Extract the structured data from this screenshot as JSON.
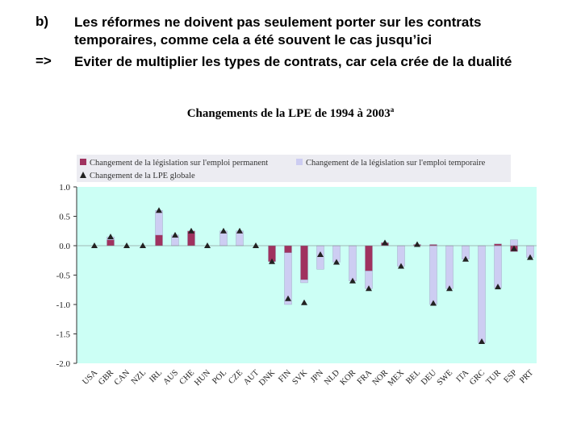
{
  "slide": {
    "marker_1": "b)",
    "marker_2": "=>",
    "line_1": "Les réformes ne doivent pas seulement porter sur les contrats",
    "line_2": "temporaires, comme cela a été souvent le cas jusqu’ici",
    "line_3": "Eviter de multiplier les types de contrats, car cela crée de la dualité"
  },
  "chart_data": {
    "type": "bar",
    "title": "Changements de la LPE de 1994 à 2003",
    "title_note": "a",
    "categories": [
      "USA",
      "GBR",
      "CAN",
      "NZL",
      "IRL",
      "AUS",
      "CHE",
      "HUN",
      "POL",
      "CZE",
      "AUT",
      "DNK",
      "FIN",
      "SVK",
      "JPN",
      "NLD",
      "KOR",
      "FRA",
      "NOR",
      "MEX",
      "BEL",
      "DEU",
      "SWE",
      "ITA",
      "GRC",
      "TUR",
      "ESP",
      "PRT"
    ],
    "series": [
      {
        "name": "Changement de la législation sur l'emploi permanent",
        "kind": "bar",
        "color": "#a0325f",
        "values": [
          0,
          0.1,
          0,
          0,
          0.18,
          0,
          0.25,
          0,
          0,
          0,
          0,
          -0.27,
          -0.12,
          -0.58,
          0,
          0,
          0,
          -0.43,
          0.05,
          0,
          0.02,
          0.02,
          0,
          0,
          0,
          0.03,
          -0.1,
          0
        ]
      },
      {
        "name": "Changement de la législation sur l'emploi temporaire",
        "kind": "bar",
        "color": "#cdcdf2",
        "values": [
          0,
          0.05,
          0,
          0,
          0.42,
          0.18,
          0,
          0,
          0.25,
          0.25,
          0,
          0,
          -0.88,
          -0.05,
          -0.4,
          -0.28,
          -0.6,
          -0.3,
          0,
          -0.35,
          0,
          -1.0,
          -0.73,
          -0.23,
          -1.65,
          -0.72,
          0.1,
          -0.2
        ]
      },
      {
        "name": "Changement de la LPE globale",
        "kind": "marker",
        "color": "#222222",
        "values": [
          0,
          0.15,
          0,
          0,
          0.6,
          0.18,
          0.25,
          0,
          0.25,
          0.25,
          0,
          -0.27,
          -0.9,
          -0.97,
          -0.15,
          -0.28,
          -0.6,
          -0.73,
          0.05,
          -0.35,
          0.02,
          -0.98,
          -0.73,
          -0.23,
          -1.63,
          -0.7,
          -0.05,
          -0.2
        ]
      }
    ],
    "ylim": [
      -2.0,
      1.0
    ],
    "yticks": [
      "1.0",
      "0.5",
      "0.0",
      "-0.5",
      "-1.0",
      "-1.5",
      "-2.0"
    ],
    "xlabel": "",
    "ylabel": "",
    "grid": false,
    "legend_position": "top",
    "colors": {
      "plot_background": "#ccfff5",
      "legend_background": "#ececf2",
      "axis": "#333333"
    }
  }
}
